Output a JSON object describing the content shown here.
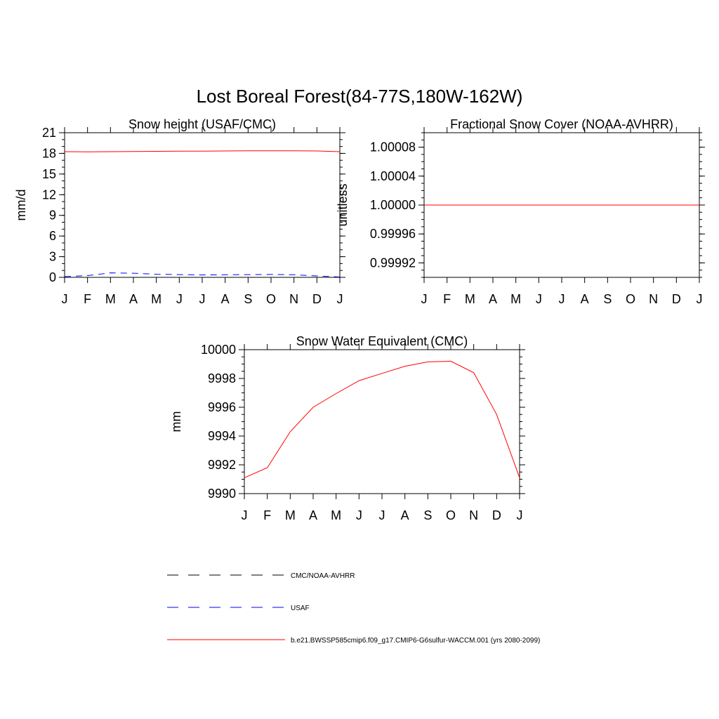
{
  "title": "Lost Boreal Forest(84-77S,180W-162W)",
  "chart_data": [
    {
      "type": "line",
      "title": "Snow height (USAF/CMC)",
      "xlabel": "",
      "ylabel": "mm/d",
      "categories": [
        "J",
        "F",
        "M",
        "A",
        "M",
        "J",
        "J",
        "A",
        "S",
        "O",
        "N",
        "D",
        "J"
      ],
      "ylim": [
        0,
        21
      ],
      "yticks": [
        0,
        3,
        6,
        9,
        12,
        15,
        18,
        21
      ],
      "ytick_labels": [
        "0",
        "3",
        "6",
        "9",
        "12",
        "15",
        "18",
        "21"
      ],
      "series": [
        {
          "name": "b.e21.BWSSP585cmip6.f09_g17.CMIP6-G6sulfur-WACCM.001 (yrs 2080-2099)",
          "color": "#ff0000",
          "dash": "solid",
          "values": [
            18.25,
            18.22,
            18.25,
            18.28,
            18.3,
            18.32,
            18.33,
            18.35,
            18.37,
            18.38,
            18.38,
            18.35,
            18.25
          ]
        },
        {
          "name": "USAF",
          "color": "#0000ff",
          "dash": "dashed",
          "values": [
            0.1,
            0.25,
            0.65,
            0.6,
            0.45,
            0.4,
            0.35,
            0.38,
            0.4,
            0.42,
            0.38,
            0.2,
            0.05
          ]
        }
      ]
    },
    {
      "type": "line",
      "title": "Fractional Snow Cover (NOAA-AVHRR)",
      "xlabel": "",
      "ylabel": "unitless",
      "categories": [
        "J",
        "F",
        "M",
        "A",
        "M",
        "J",
        "J",
        "A",
        "S",
        "O",
        "N",
        "D",
        "J"
      ],
      "ylim": [
        0.9999,
        1.0001
      ],
      "yticks": [
        0.99992,
        0.99996,
        1.0,
        1.00004,
        1.00008
      ],
      "ytick_labels": [
        "0.99992",
        "0.99996",
        "1.00000",
        "1.00004",
        "1.00008"
      ],
      "series": [
        {
          "name": "b.e21.BWSSP585cmip6.f09_g17.CMIP6-G6sulfur-WACCM.001 (yrs 2080-2099)",
          "color": "#ff0000",
          "dash": "solid",
          "values": [
            1,
            1,
            1,
            1,
            1,
            1,
            1,
            1,
            1,
            1,
            1,
            1,
            1
          ]
        }
      ]
    },
    {
      "type": "line",
      "title": "Snow Water Equivalent (CMC)",
      "xlabel": "",
      "ylabel": "mm",
      "categories": [
        "J",
        "F",
        "M",
        "A",
        "M",
        "J",
        "J",
        "A",
        "S",
        "O",
        "N",
        "D",
        "J"
      ],
      "ylim": [
        9990,
        10000
      ],
      "yticks": [
        9990,
        9992,
        9994,
        9996,
        9998,
        10000
      ],
      "ytick_labels": [
        "9990",
        "9992",
        "9994",
        "9996",
        "9998",
        "10000"
      ],
      "series": [
        {
          "name": "b.e21.BWSSP585cmip6.f09_g17.CMIP6-G6sulfur-WACCM.001 (yrs 2080-2099)",
          "color": "#ff0000",
          "dash": "solid",
          "values": [
            9991.1,
            9991.8,
            9994.3,
            9996.0,
            9996.95,
            9997.85,
            9998.35,
            9998.85,
            9999.15,
            9999.2,
            9998.4,
            9995.5,
            9991.1
          ]
        }
      ]
    }
  ],
  "legend": {
    "placement": "bottom",
    "items": [
      {
        "label": "CMC/NOAA-AVHRR",
        "color": "#000000",
        "dash": "dashed"
      },
      {
        "label": "USAF",
        "color": "#0000ff",
        "dash": "dashed"
      },
      {
        "label": "b.e21.BWSSP585cmip6.f09_g17.CMIP6-G6sulfur-WACCM.001 (yrs 2080-2099)",
        "color": "#ff0000",
        "dash": "solid"
      }
    ]
  }
}
